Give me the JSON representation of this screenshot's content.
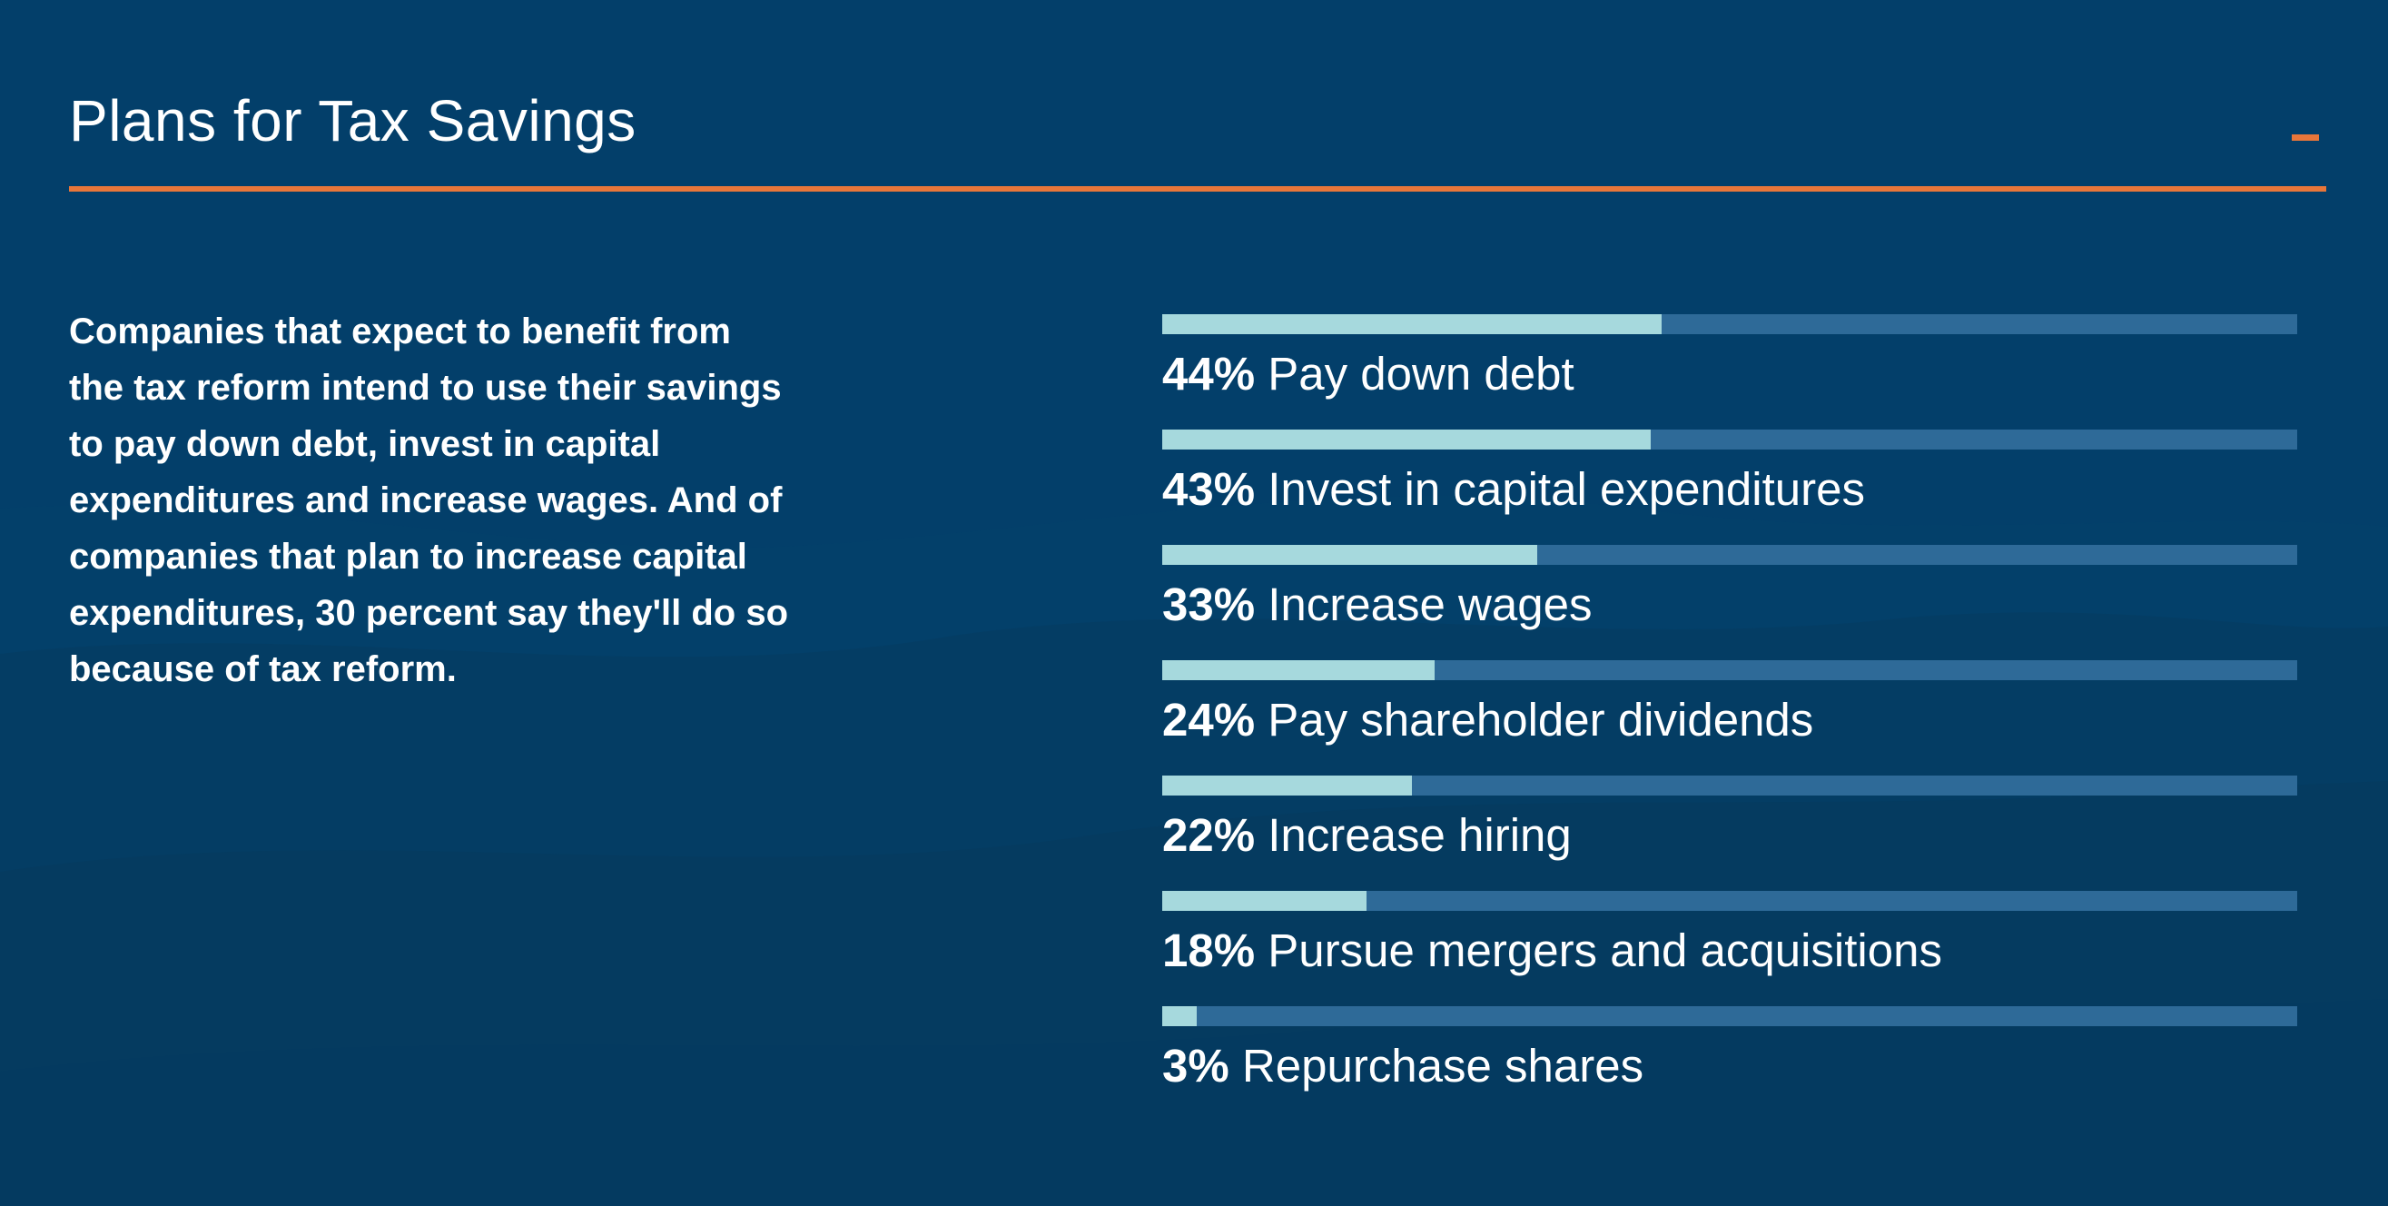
{
  "section": {
    "title": "Plans for Tax Savings",
    "collapse_icon": "minus-icon"
  },
  "description": "Companies that expect to benefit from the tax reform intend to use their savings to pay down debt, invest in capital expenditures and increase wages. And of companies that plan to increase capital expenditures, 30 percent say they'll do so because of tax reform.",
  "colors": {
    "background": "#033f6a",
    "accent": "#e8763a",
    "bar_fill": "#a6d9dd",
    "bar_track": "#2e6a98"
  },
  "chart_data": {
    "type": "bar",
    "orientation": "horizontal",
    "title": "Plans for Tax Savings",
    "unit": "%",
    "xlim": [
      0,
      100
    ],
    "categories": [
      "Pay down debt",
      "Invest in capital expenditures",
      "Increase wages",
      "Pay shareholder dividends",
      "Increase hiring",
      "Pursue mergers and acquisitions",
      "Repurchase shares"
    ],
    "values": [
      44,
      43,
      33,
      24,
      22,
      18,
      3
    ],
    "labels": [
      "44%",
      "43%",
      "33%",
      "24%",
      "22%",
      "18%",
      "3%"
    ]
  }
}
